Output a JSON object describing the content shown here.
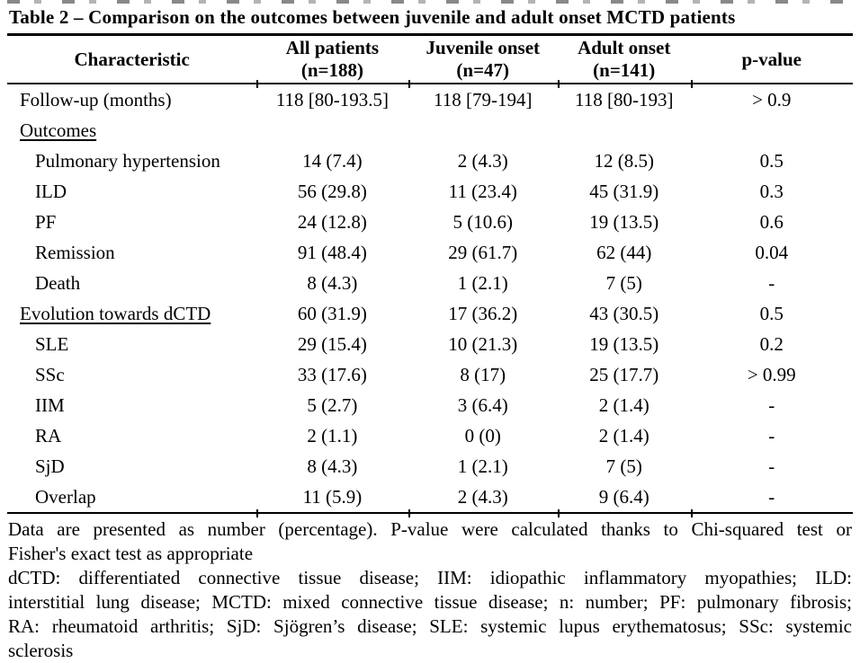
{
  "page": {
    "background_color": "#ffffff",
    "text_color": "#000000"
  },
  "title": "Table 2 – Comparison on the outcomes between juvenile and adult onset MCTD patients",
  "table": {
    "columns": [
      {
        "label": "Characteristic",
        "sub": ""
      },
      {
        "label": "All patients",
        "sub": "(n=188)"
      },
      {
        "label": "Juvenile onset",
        "sub": "(n=47)"
      },
      {
        "label": "Adult onset",
        "sub": "(n=141)"
      },
      {
        "label": "p-value",
        "sub": ""
      }
    ],
    "rows": [
      {
        "label": "Follow-up (months)",
        "indent": 0,
        "underline": false,
        "values": [
          "118 [80-193.5]",
          "118 [79-194]",
          "118 [80-193]",
          "> 0.9"
        ]
      },
      {
        "label": "Outcomes",
        "indent": 0,
        "underline": true,
        "values": [
          "",
          "",
          "",
          ""
        ]
      },
      {
        "label": "Pulmonary hypertension",
        "indent": 1,
        "underline": false,
        "values": [
          "14 (7.4)",
          "2 (4.3)",
          "12 (8.5)",
          "0.5"
        ]
      },
      {
        "label": "ILD",
        "indent": 1,
        "underline": false,
        "values": [
          "56 (29.8)",
          "11 (23.4)",
          "45 (31.9)",
          "0.3"
        ]
      },
      {
        "label": "PF",
        "indent": 1,
        "underline": false,
        "values": [
          "24 (12.8)",
          "5 (10.6)",
          "19 (13.5)",
          "0.6"
        ]
      },
      {
        "label": "Remission",
        "indent": 1,
        "underline": false,
        "values": [
          "91 (48.4)",
          "29 (61.7)",
          "62 (44)",
          "0.04"
        ]
      },
      {
        "label": "Death",
        "indent": 1,
        "underline": false,
        "values": [
          "8 (4.3)",
          "1 (2.1)",
          "7 (5)",
          "-"
        ]
      },
      {
        "label": "Evolution towards dCTD",
        "indent": 0,
        "underline": true,
        "values": [
          "60 (31.9)",
          "17 (36.2)",
          "43 (30.5)",
          "0.5"
        ]
      },
      {
        "label": "SLE",
        "indent": 1,
        "underline": false,
        "values": [
          "29 (15.4)",
          "10 (21.3)",
          "19 (13.5)",
          "0.2"
        ]
      },
      {
        "label": "SSc",
        "indent": 1,
        "underline": false,
        "values": [
          "33 (17.6)",
          "8 (17)",
          "25 (17.7)",
          "> 0.99"
        ]
      },
      {
        "label": "IIM",
        "indent": 1,
        "underline": false,
        "values": [
          "5 (2.7)",
          "3 (6.4)",
          "2 (1.4)",
          "-"
        ]
      },
      {
        "label": "RA",
        "indent": 1,
        "underline": false,
        "values": [
          "2 (1.1)",
          "0 (0)",
          "2 (1.4)",
          "-"
        ]
      },
      {
        "label": "SjD",
        "indent": 1,
        "underline": false,
        "values": [
          "8 (4.3)",
          "1 (2.1)",
          "7 (5)",
          "-"
        ]
      },
      {
        "label": "Overlap",
        "indent": 1,
        "underline": false,
        "values": [
          "11 (5.9)",
          "2 (4.3)",
          "9 (6.4)",
          "-"
        ]
      }
    ],
    "column_boundaries_pct": [
      29.5,
      47.4,
      65.1,
      80.8
    ]
  },
  "footnotes": {
    "paragraphs": [
      {
        "lines": [
          "Data are presented as number (percentage). P-value were calculated thanks to Chi-squared test or",
          "Fisher's exact test as appropriate"
        ]
      },
      {
        "lines": [
          "dCTD: differentiated connective tissue disease; IIM: idiopathic inflammatory myopathies; ILD:",
          "interstitial lung disease; MCTD: mixed connective tissue disease; n: number; PF: pulmonary fibrosis;",
          "RA: rheumatoid arthritis; SjD: Sjögren’s disease; SLE: systemic lupus erythematosus; SSc: systemic",
          "sclerosis"
        ]
      }
    ]
  }
}
